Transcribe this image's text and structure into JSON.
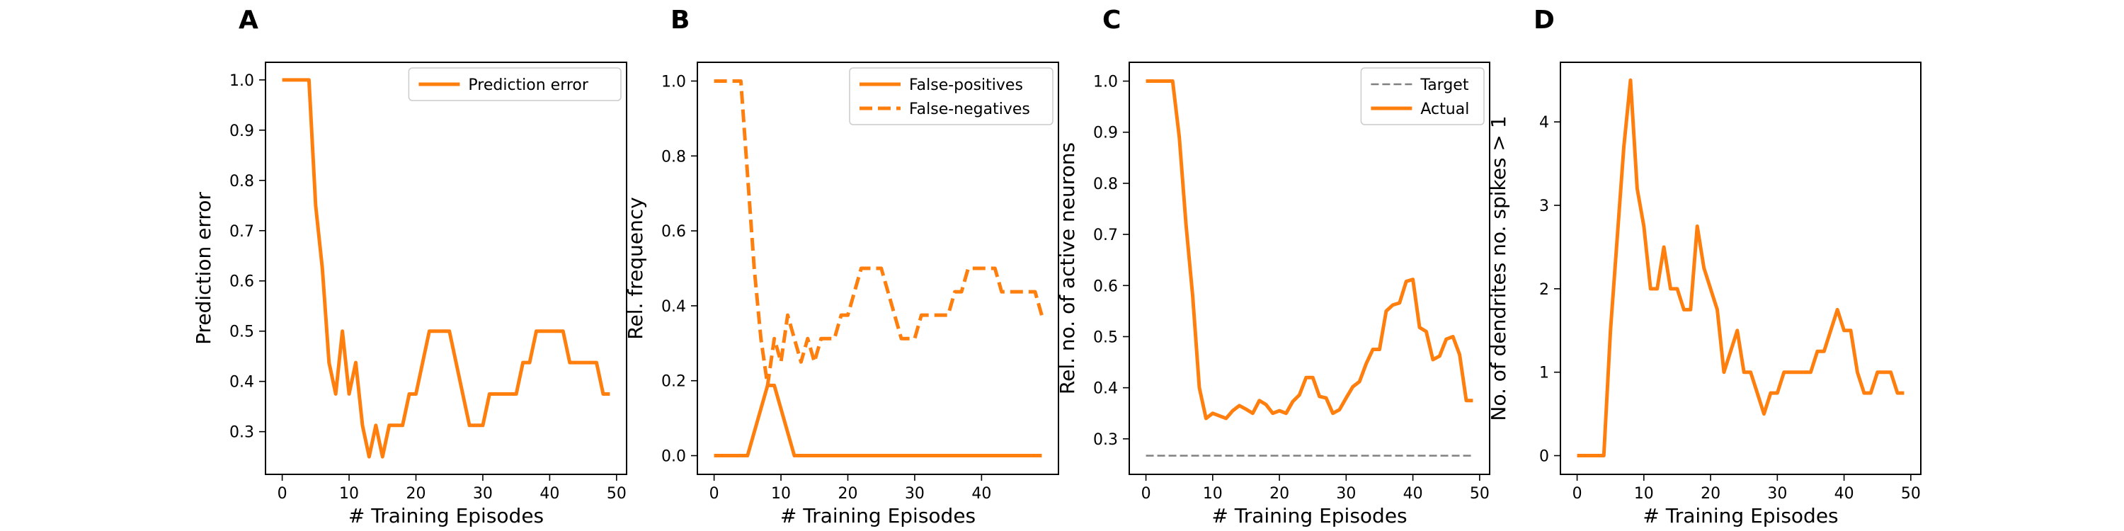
{
  "colors": {
    "series": "#ff7f0e",
    "target": "#808080",
    "axis": "#000000",
    "legend_border": "#cccccc"
  },
  "chart_data": [
    {
      "type": "line",
      "panel_label": "A",
      "xlabel": "# Training Episodes",
      "ylabel": "Prediction error",
      "xlim": [
        -2.5,
        51.5
      ],
      "ylim": [
        0.215,
        1.035
      ],
      "xticks": [
        0,
        10,
        20,
        30,
        40,
        50
      ],
      "yticks": [
        0.3,
        0.4,
        0.5,
        0.6,
        0.7,
        0.8,
        0.9,
        1.0
      ],
      "ytick_decimals": 1,
      "legend_position": "top-right",
      "series": [
        {
          "name": "Prediction error",
          "style": "solid",
          "color": "#ff7f0e",
          "x": [
            0,
            1,
            2,
            3,
            4,
            5,
            6,
            7,
            8,
            9,
            10,
            11,
            12,
            13,
            14,
            15,
            16,
            17,
            18,
            19,
            20,
            21,
            22,
            23,
            24,
            25,
            26,
            27,
            28,
            29,
            30,
            31,
            32,
            33,
            34,
            35,
            36,
            37,
            38,
            39,
            40,
            41,
            42,
            43,
            44,
            45,
            46,
            47,
            48,
            49
          ],
          "y": [
            1.0,
            1.0,
            1.0,
            1.0,
            1.0,
            0.75,
            0.625,
            0.4375,
            0.375,
            0.5,
            0.375,
            0.4375,
            0.3125,
            0.25,
            0.3125,
            0.25,
            0.3125,
            0.3125,
            0.3125,
            0.375,
            0.375,
            0.4375,
            0.5,
            0.5,
            0.5,
            0.5,
            0.4375,
            0.375,
            0.3125,
            0.3125,
            0.3125,
            0.375,
            0.375,
            0.375,
            0.375,
            0.375,
            0.4375,
            0.4375,
            0.5,
            0.5,
            0.5,
            0.5,
            0.5,
            0.4375,
            0.4375,
            0.4375,
            0.4375,
            0.4375,
            0.375,
            0.375
          ]
        }
      ]
    },
    {
      "type": "line",
      "panel_label": "B",
      "xlabel": "# Training Episodes",
      "ylabel": "Rel. frequency",
      "xlim": [
        -2.5,
        51.5
      ],
      "ylim": [
        -0.05,
        1.05
      ],
      "xticks": [
        0,
        10,
        20,
        30,
        40
      ],
      "yticks": [
        0.0,
        0.2,
        0.4,
        0.6,
        0.8,
        1.0
      ],
      "ytick_decimals": 1,
      "legend_position": "top-right",
      "series": [
        {
          "name": "False-positives",
          "style": "solid",
          "color": "#ff7f0e",
          "x": [
            0,
            1,
            2,
            3,
            4,
            5,
            6,
            7,
            8,
            9,
            10,
            11,
            12,
            13,
            14,
            15,
            16,
            17,
            18,
            19,
            20,
            21,
            22,
            23,
            24,
            25,
            26,
            27,
            28,
            29,
            30,
            31,
            32,
            33,
            34,
            35,
            36,
            37,
            38,
            39,
            40,
            41,
            42,
            43,
            44,
            45,
            46,
            47,
            48,
            49
          ],
          "y": [
            0,
            0,
            0,
            0,
            0,
            0,
            0.0625,
            0.125,
            0.1875,
            0.1875,
            0.125,
            0.0625,
            0,
            0,
            0,
            0,
            0,
            0,
            0,
            0,
            0,
            0,
            0,
            0,
            0,
            0,
            0,
            0,
            0,
            0,
            0,
            0,
            0,
            0,
            0,
            0,
            0,
            0,
            0,
            0,
            0,
            0,
            0,
            0,
            0,
            0,
            0,
            0,
            0,
            0
          ]
        },
        {
          "name": "False-negatives",
          "style": "dashed",
          "color": "#ff7f0e",
          "x": [
            0,
            1,
            2,
            3,
            4,
            5,
            6,
            7,
            8,
            9,
            10,
            11,
            12,
            13,
            14,
            15,
            16,
            17,
            18,
            19,
            20,
            21,
            22,
            23,
            24,
            25,
            26,
            27,
            28,
            29,
            30,
            31,
            32,
            33,
            34,
            35,
            36,
            37,
            38,
            39,
            40,
            41,
            42,
            43,
            44,
            45,
            46,
            47,
            48,
            49
          ],
          "y": [
            1.0,
            1.0,
            1.0,
            1.0,
            1.0,
            0.75,
            0.5,
            0.3125,
            0.1875,
            0.3125,
            0.25,
            0.375,
            0.3125,
            0.25,
            0.3125,
            0.25,
            0.3125,
            0.3125,
            0.3125,
            0.375,
            0.375,
            0.4375,
            0.5,
            0.5,
            0.5,
            0.5,
            0.4375,
            0.375,
            0.3125,
            0.3125,
            0.3125,
            0.375,
            0.375,
            0.375,
            0.375,
            0.375,
            0.4375,
            0.4375,
            0.5,
            0.5,
            0.5,
            0.5,
            0.5,
            0.4375,
            0.4375,
            0.4375,
            0.4375,
            0.4375,
            0.4375,
            0.375
          ]
        }
      ]
    },
    {
      "type": "line",
      "panel_label": "C",
      "xlabel": "# Training Episodes",
      "ylabel": "Rel. no. of active neurons",
      "xlim": [
        -2.5,
        51.5
      ],
      "ylim": [
        0.2305,
        1.0368
      ],
      "xticks": [
        0,
        10,
        20,
        30,
        40,
        50
      ],
      "yticks": [
        0.3,
        0.4,
        0.5,
        0.6,
        0.7,
        0.8,
        0.9,
        1.0
      ],
      "ytick_decimals": 1,
      "legend_position": "top-right",
      "series": [
        {
          "name": "Target",
          "style": "dashed-thin",
          "color": "#808080",
          "x": [
            0,
            49
          ],
          "y": [
            0.2671,
            0.2671
          ]
        },
        {
          "name": "Actual",
          "style": "solid",
          "color": "#ff7f0e",
          "x": [
            0,
            1,
            2,
            3,
            4,
            5,
            6,
            7,
            8,
            9,
            10,
            11,
            12,
            13,
            14,
            15,
            16,
            17,
            18,
            19,
            20,
            21,
            22,
            23,
            24,
            25,
            26,
            27,
            28,
            29,
            30,
            31,
            32,
            33,
            34,
            35,
            36,
            37,
            38,
            39,
            40,
            41,
            42,
            43,
            44,
            45,
            46,
            47,
            48,
            49
          ],
          "y": [
            1.0,
            1.0,
            1.0,
            1.0,
            1.0,
            0.89,
            0.72,
            0.58,
            0.4,
            0.34,
            0.35,
            0.345,
            0.34,
            0.355,
            0.365,
            0.358,
            0.35,
            0.375,
            0.367,
            0.35,
            0.355,
            0.35,
            0.373,
            0.386,
            0.42,
            0.42,
            0.383,
            0.38,
            0.35,
            0.357,
            0.38,
            0.402,
            0.412,
            0.447,
            0.475,
            0.475,
            0.55,
            0.562,
            0.566,
            0.608,
            0.612,
            0.518,
            0.51,
            0.455,
            0.462,
            0.495,
            0.5,
            0.465,
            0.375,
            0.375
          ]
        }
      ]
    },
    {
      "type": "line",
      "panel_label": "D",
      "xlabel": "# Training Episodes",
      "ylabel": "No. of dendrites no. spikes > 1",
      "xlim": [
        -2.5,
        51.5
      ],
      "ylim": [
        -0.2245,
        4.7145
      ],
      "xticks": [
        0,
        10,
        20,
        30,
        40,
        50
      ],
      "yticks": [
        0,
        1,
        2,
        3,
        4
      ],
      "ytick_decimals": 0,
      "legend_position": "none",
      "series": [
        {
          "name": "",
          "style": "solid",
          "color": "#ff7f0e",
          "x": [
            0,
            1,
            2,
            3,
            4,
            5,
            6,
            7,
            8,
            9,
            10,
            11,
            12,
            13,
            14,
            15,
            16,
            17,
            18,
            19,
            20,
            21,
            22,
            23,
            24,
            25,
            26,
            27,
            28,
            29,
            30,
            31,
            32,
            33,
            34,
            35,
            36,
            37,
            38,
            39,
            40,
            41,
            42,
            43,
            44,
            45,
            46,
            47,
            48,
            49
          ],
          "y": [
            0,
            0,
            0,
            0,
            0,
            1.5,
            2.6,
            3.7,
            4.5,
            3.2,
            2.75,
            2.0,
            2.0,
            2.5,
            2.0,
            2.0,
            1.75,
            1.75,
            2.75,
            2.25,
            2.0,
            1.75,
            1.0,
            1.25,
            1.5,
            1.0,
            1.0,
            0.75,
            0.5,
            0.75,
            0.75,
            1.0,
            1.0,
            1.0,
            1.0,
            1.0,
            1.25,
            1.25,
            1.5,
            1.75,
            1.5,
            1.5,
            1.0,
            0.75,
            0.75,
            1.0,
            1.0,
            1.0,
            0.75,
            0.75
          ]
        }
      ]
    }
  ]
}
